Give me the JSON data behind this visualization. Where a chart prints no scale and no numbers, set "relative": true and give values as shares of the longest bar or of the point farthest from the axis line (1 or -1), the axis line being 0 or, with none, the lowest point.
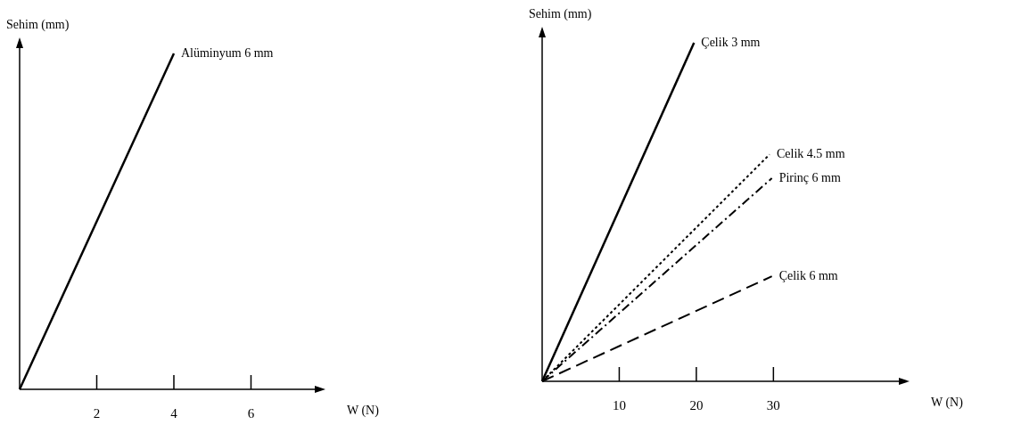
{
  "chart_data": [
    {
      "type": "line",
      "relative": true,
      "xlabel": "W (N)",
      "ylabel": "Sehim (mm)",
      "xlim": [
        0,
        7.7
      ],
      "xticks": [
        2,
        4,
        6
      ],
      "grid": false,
      "marker": "none",
      "series": [
        {
          "name": "Alüminyum 6 mm",
          "color": "#000000",
          "line_style": "solid",
          "x": [
            0,
            4
          ],
          "values": [
            0,
            1
          ]
        }
      ]
    },
    {
      "type": "line",
      "relative": true,
      "xlabel": "W (N)",
      "ylabel": "Sehim (mm)",
      "xlim": [
        0,
        46.5
      ],
      "xticks": [
        10,
        20,
        30
      ],
      "grid": false,
      "marker": "none",
      "series": [
        {
          "name": "Çelik 3 mm",
          "color": "#000000",
          "line_style": "solid",
          "x": [
            0,
            19.7
          ],
          "values": [
            0,
            1
          ]
        },
        {
          "name": "Celik 4.5 mm",
          "color": "#000000",
          "line_style": "dotted",
          "x": [
            0,
            29.5
          ],
          "values": [
            0,
            0.67
          ]
        },
        {
          "name": "Pirinç 6 mm",
          "color": "#000000",
          "line_style": "dashdot",
          "x": [
            0,
            29.8
          ],
          "values": [
            0,
            0.6
          ]
        },
        {
          "name": "Çelik 6 mm",
          "color": "#000000",
          "line_style": "dashed",
          "x": [
            0,
            29.8
          ],
          "values": [
            0,
            0.31
          ]
        }
      ]
    }
  ]
}
